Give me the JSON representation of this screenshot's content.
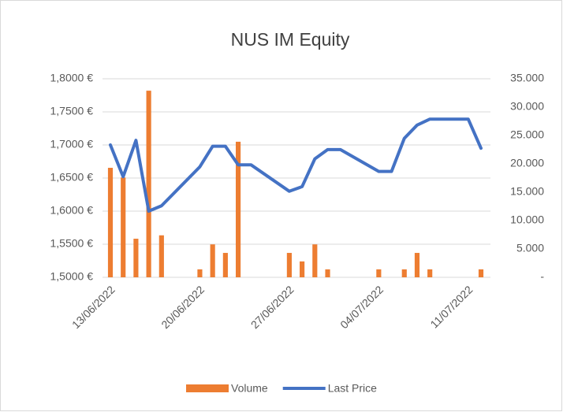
{
  "chart_data": {
    "type": "combo",
    "title": "NUS IM Equity",
    "x": [
      "13/06/2022",
      "14/06/2022",
      "15/06/2022",
      "16/06/2022",
      "17/06/2022",
      "20/06/2022",
      "21/06/2022",
      "22/06/2022",
      "23/06/2022",
      "24/06/2022",
      "27/06/2022",
      "28/06/2022",
      "29/06/2022",
      "30/06/2022",
      "01/07/2022",
      "04/07/2022",
      "05/07/2022",
      "06/07/2022",
      "07/07/2022",
      "08/07/2022",
      "11/07/2022",
      "12/07/2022"
    ],
    "xlim": [
      "13/06/2022",
      "12/07/2022"
    ],
    "xticks": [
      "13/06/2022",
      "20/06/2022",
      "27/06/2022",
      "04/07/2022",
      "11/07/2022"
    ],
    "series": [
      {
        "name": "Volume",
        "type": "bar",
        "color": "#ed7d31",
        "axis": "y2",
        "values": [
          19300,
          17600,
          6800,
          32900,
          7400,
          1400,
          5800,
          4300,
          23900,
          0,
          4300,
          2800,
          5800,
          1400,
          0,
          1400,
          0,
          1400,
          4300,
          1400,
          0,
          1400
        ]
      },
      {
        "name": "Last Price",
        "type": "line",
        "color": "#4472c4",
        "axis": "y",
        "values": [
          1.7,
          1.652,
          1.707,
          1.6,
          1.608,
          1.667,
          1.698,
          1.698,
          1.67,
          1.67,
          1.63,
          1.637,
          1.679,
          1.693,
          1.693,
          1.66,
          1.66,
          1.71,
          1.73,
          1.739,
          1.739,
          1.695
        ]
      }
    ],
    "ylim": [
      1.5,
      1.8
    ],
    "yticks": [
      {
        "value": 1.5,
        "label": "1,5000 €"
      },
      {
        "value": 1.55,
        "label": "1,5500 €"
      },
      {
        "value": 1.6,
        "label": "1,6000 €"
      },
      {
        "value": 1.65,
        "label": "1,6500 €"
      },
      {
        "value": 1.7,
        "label": "1,7000 €"
      },
      {
        "value": 1.75,
        "label": "1,7500 €"
      },
      {
        "value": 1.8,
        "label": "1,8000 €"
      }
    ],
    "y2lim": [
      0,
      35000
    ],
    "y2ticks": [
      {
        "value": 0,
        "label": "-"
      },
      {
        "value": 5000,
        "label": "5.000"
      },
      {
        "value": 10000,
        "label": "10.000"
      },
      {
        "value": 15000,
        "label": "15.000"
      },
      {
        "value": 20000,
        "label": "20.000"
      },
      {
        "value": 25000,
        "label": "25.000"
      },
      {
        "value": 30000,
        "label": "30.000"
      },
      {
        "value": 35000,
        "label": "35.000"
      }
    ],
    "grid": true,
    "legend": "bottom"
  }
}
